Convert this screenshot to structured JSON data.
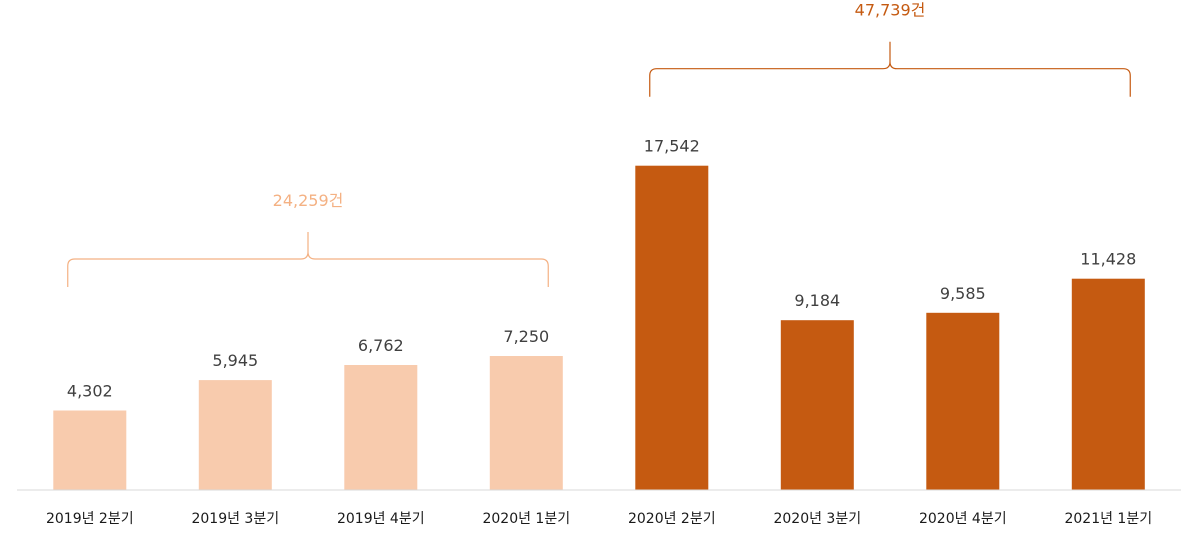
{
  "chart_data": {
    "type": "bar",
    "title": "",
    "xlabel": "",
    "ylabel": "",
    "ylim": [
      0,
      18500
    ],
    "grid": false,
    "categories": [
      "2019년 2분기",
      "2019년 3분기",
      "2019년 4분기",
      "2020년 1분기",
      "2020년 2분기",
      "2020년 3분기",
      "2020년 4분기",
      "2021년 1분기"
    ],
    "values": [
      4302,
      5945,
      6762,
      7250,
      17542,
      9184,
      9585,
      11428
    ],
    "value_labels": [
      "4,302",
      "5,945",
      "6,762",
      "7,250",
      "17,542",
      "9,184",
      "9,585",
      "11,428"
    ],
    "bar_colors": [
      "#f8cbad",
      "#f8cbad",
      "#f8cbad",
      "#f8cbad",
      "#c55a11",
      "#c55a11",
      "#c55a11",
      "#c55a11"
    ],
    "groups": [
      {
        "label": "24,259건",
        "start_index": 0,
        "end_index": 3,
        "color": "#f4b183"
      },
      {
        "label": "47,739건",
        "start_index": 4,
        "end_index": 7,
        "color": "#c55a11"
      }
    ],
    "axis_color": "#d9d9d9"
  }
}
